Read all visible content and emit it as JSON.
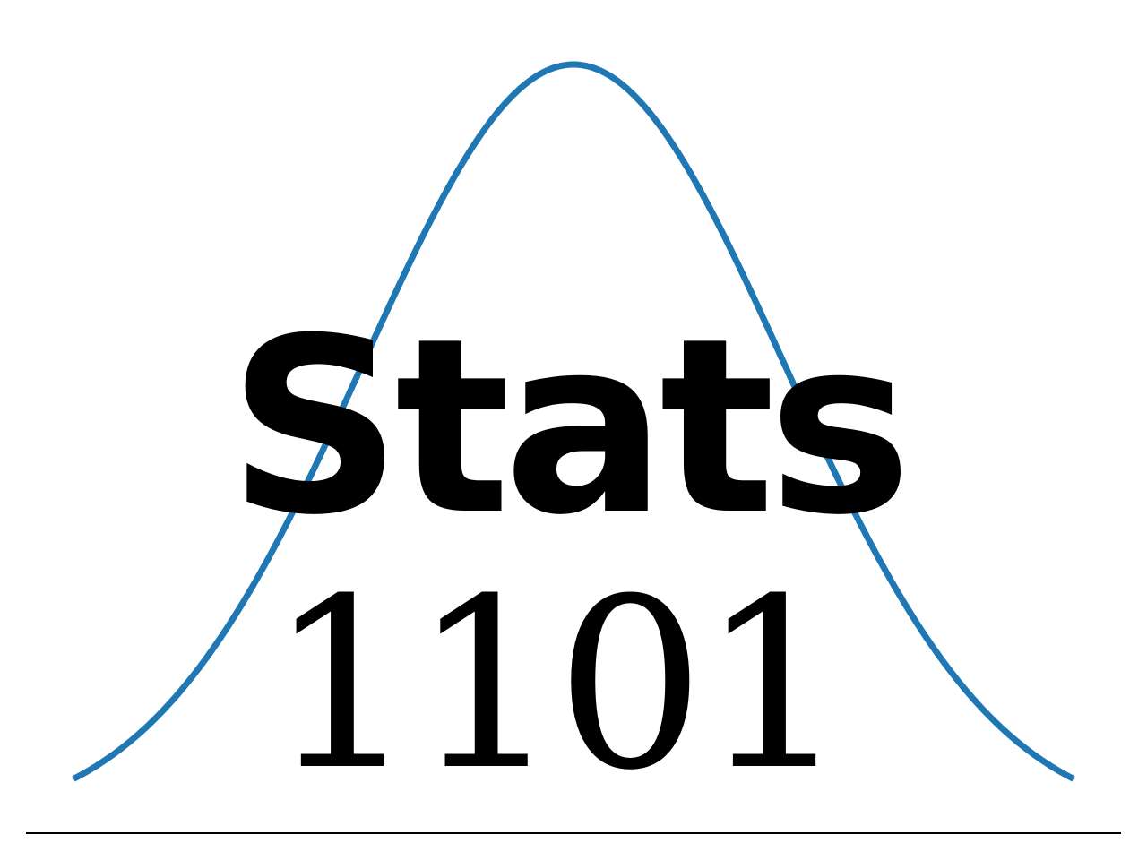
{
  "logo": {
    "title": "Stats",
    "course_number": "1101",
    "curve_color": "#1f77b4",
    "text_color": "#000000",
    "baseline_color": "#000000",
    "curve_shape": "normal-distribution-bell-curve"
  }
}
